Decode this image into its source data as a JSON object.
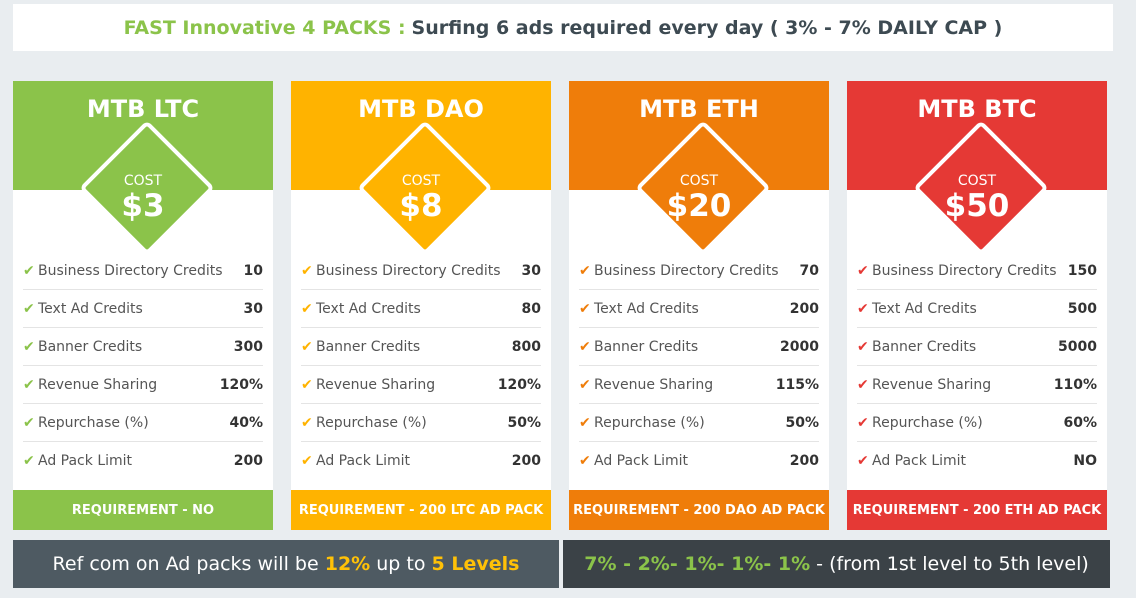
{
  "header": {
    "highlight": "FAST Innovative 4 PACKS :",
    "text": "Surfing 6 ads required every day ( 3% - 7% DAILY CAP )"
  },
  "cards": [
    {
      "name": "MTB LTC",
      "cost_label": "COST",
      "price": "$3",
      "color": "#8bc34a",
      "rows": [
        {
          "label": "Business Directory Credits",
          "value": "10"
        },
        {
          "label": "Text Ad Credits",
          "value": "30"
        },
        {
          "label": "Banner Credits",
          "value": "300"
        },
        {
          "label": "Revenue Sharing",
          "value": "120%"
        },
        {
          "label": "Repurchase (%)",
          "value": "40%"
        },
        {
          "label": "Ad Pack Limit",
          "value": "200"
        }
      ],
      "requirement": "REQUIREMENT - NO"
    },
    {
      "name": "MTB DAO",
      "cost_label": "COST",
      "price": "$8",
      "color": "#ffb300",
      "rows": [
        {
          "label": "Business Directory Credits",
          "value": "30"
        },
        {
          "label": "Text Ad Credits",
          "value": "80"
        },
        {
          "label": "Banner Credits",
          "value": "800"
        },
        {
          "label": "Revenue Sharing",
          "value": "120%"
        },
        {
          "label": "Repurchase (%)",
          "value": "50%"
        },
        {
          "label": "Ad Pack Limit",
          "value": "200"
        }
      ],
      "requirement": "REQUIREMENT - 200 LTC AD PACK"
    },
    {
      "name": "MTB ETH",
      "cost_label": "COST",
      "price": "$20",
      "color": "#ef7d0a",
      "rows": [
        {
          "label": "Business Directory Credits",
          "value": "70"
        },
        {
          "label": "Text Ad Credits",
          "value": "200"
        },
        {
          "label": "Banner Credits",
          "value": "2000"
        },
        {
          "label": "Revenue Sharing",
          "value": "115%"
        },
        {
          "label": "Repurchase (%)",
          "value": "50%"
        },
        {
          "label": "Ad Pack Limit",
          "value": "200"
        }
      ],
      "requirement": "REQUIREMENT - 200 DAO AD PACK"
    },
    {
      "name": "MTB BTC",
      "cost_label": "COST",
      "price": "$50",
      "color": "#e53935",
      "rows": [
        {
          "label": "Business Directory Credits",
          "value": "150"
        },
        {
          "label": "Text Ad Credits",
          "value": "500"
        },
        {
          "label": "Banner Credits",
          "value": "5000"
        },
        {
          "label": "Revenue Sharing",
          "value": "110%"
        },
        {
          "label": "Repurchase (%)",
          "value": "60%"
        },
        {
          "label": "Ad Pack Limit",
          "value": "NO"
        }
      ],
      "requirement": "REQUIREMENT - 200 ETH AD PACK"
    }
  ],
  "referral": {
    "left": {
      "prefix": "Ref com on Ad packs will be",
      "pct": "12%",
      "mid": "up to",
      "levels": "5 Levels",
      "bg": "#4e5a62"
    },
    "right": {
      "rates": "7% - 2%- 1%- 1%- 1%",
      "suffix": "- (from 1st level to 5th level)",
      "bg": "#3b4247"
    }
  },
  "icons": {
    "check": "check-icon"
  }
}
